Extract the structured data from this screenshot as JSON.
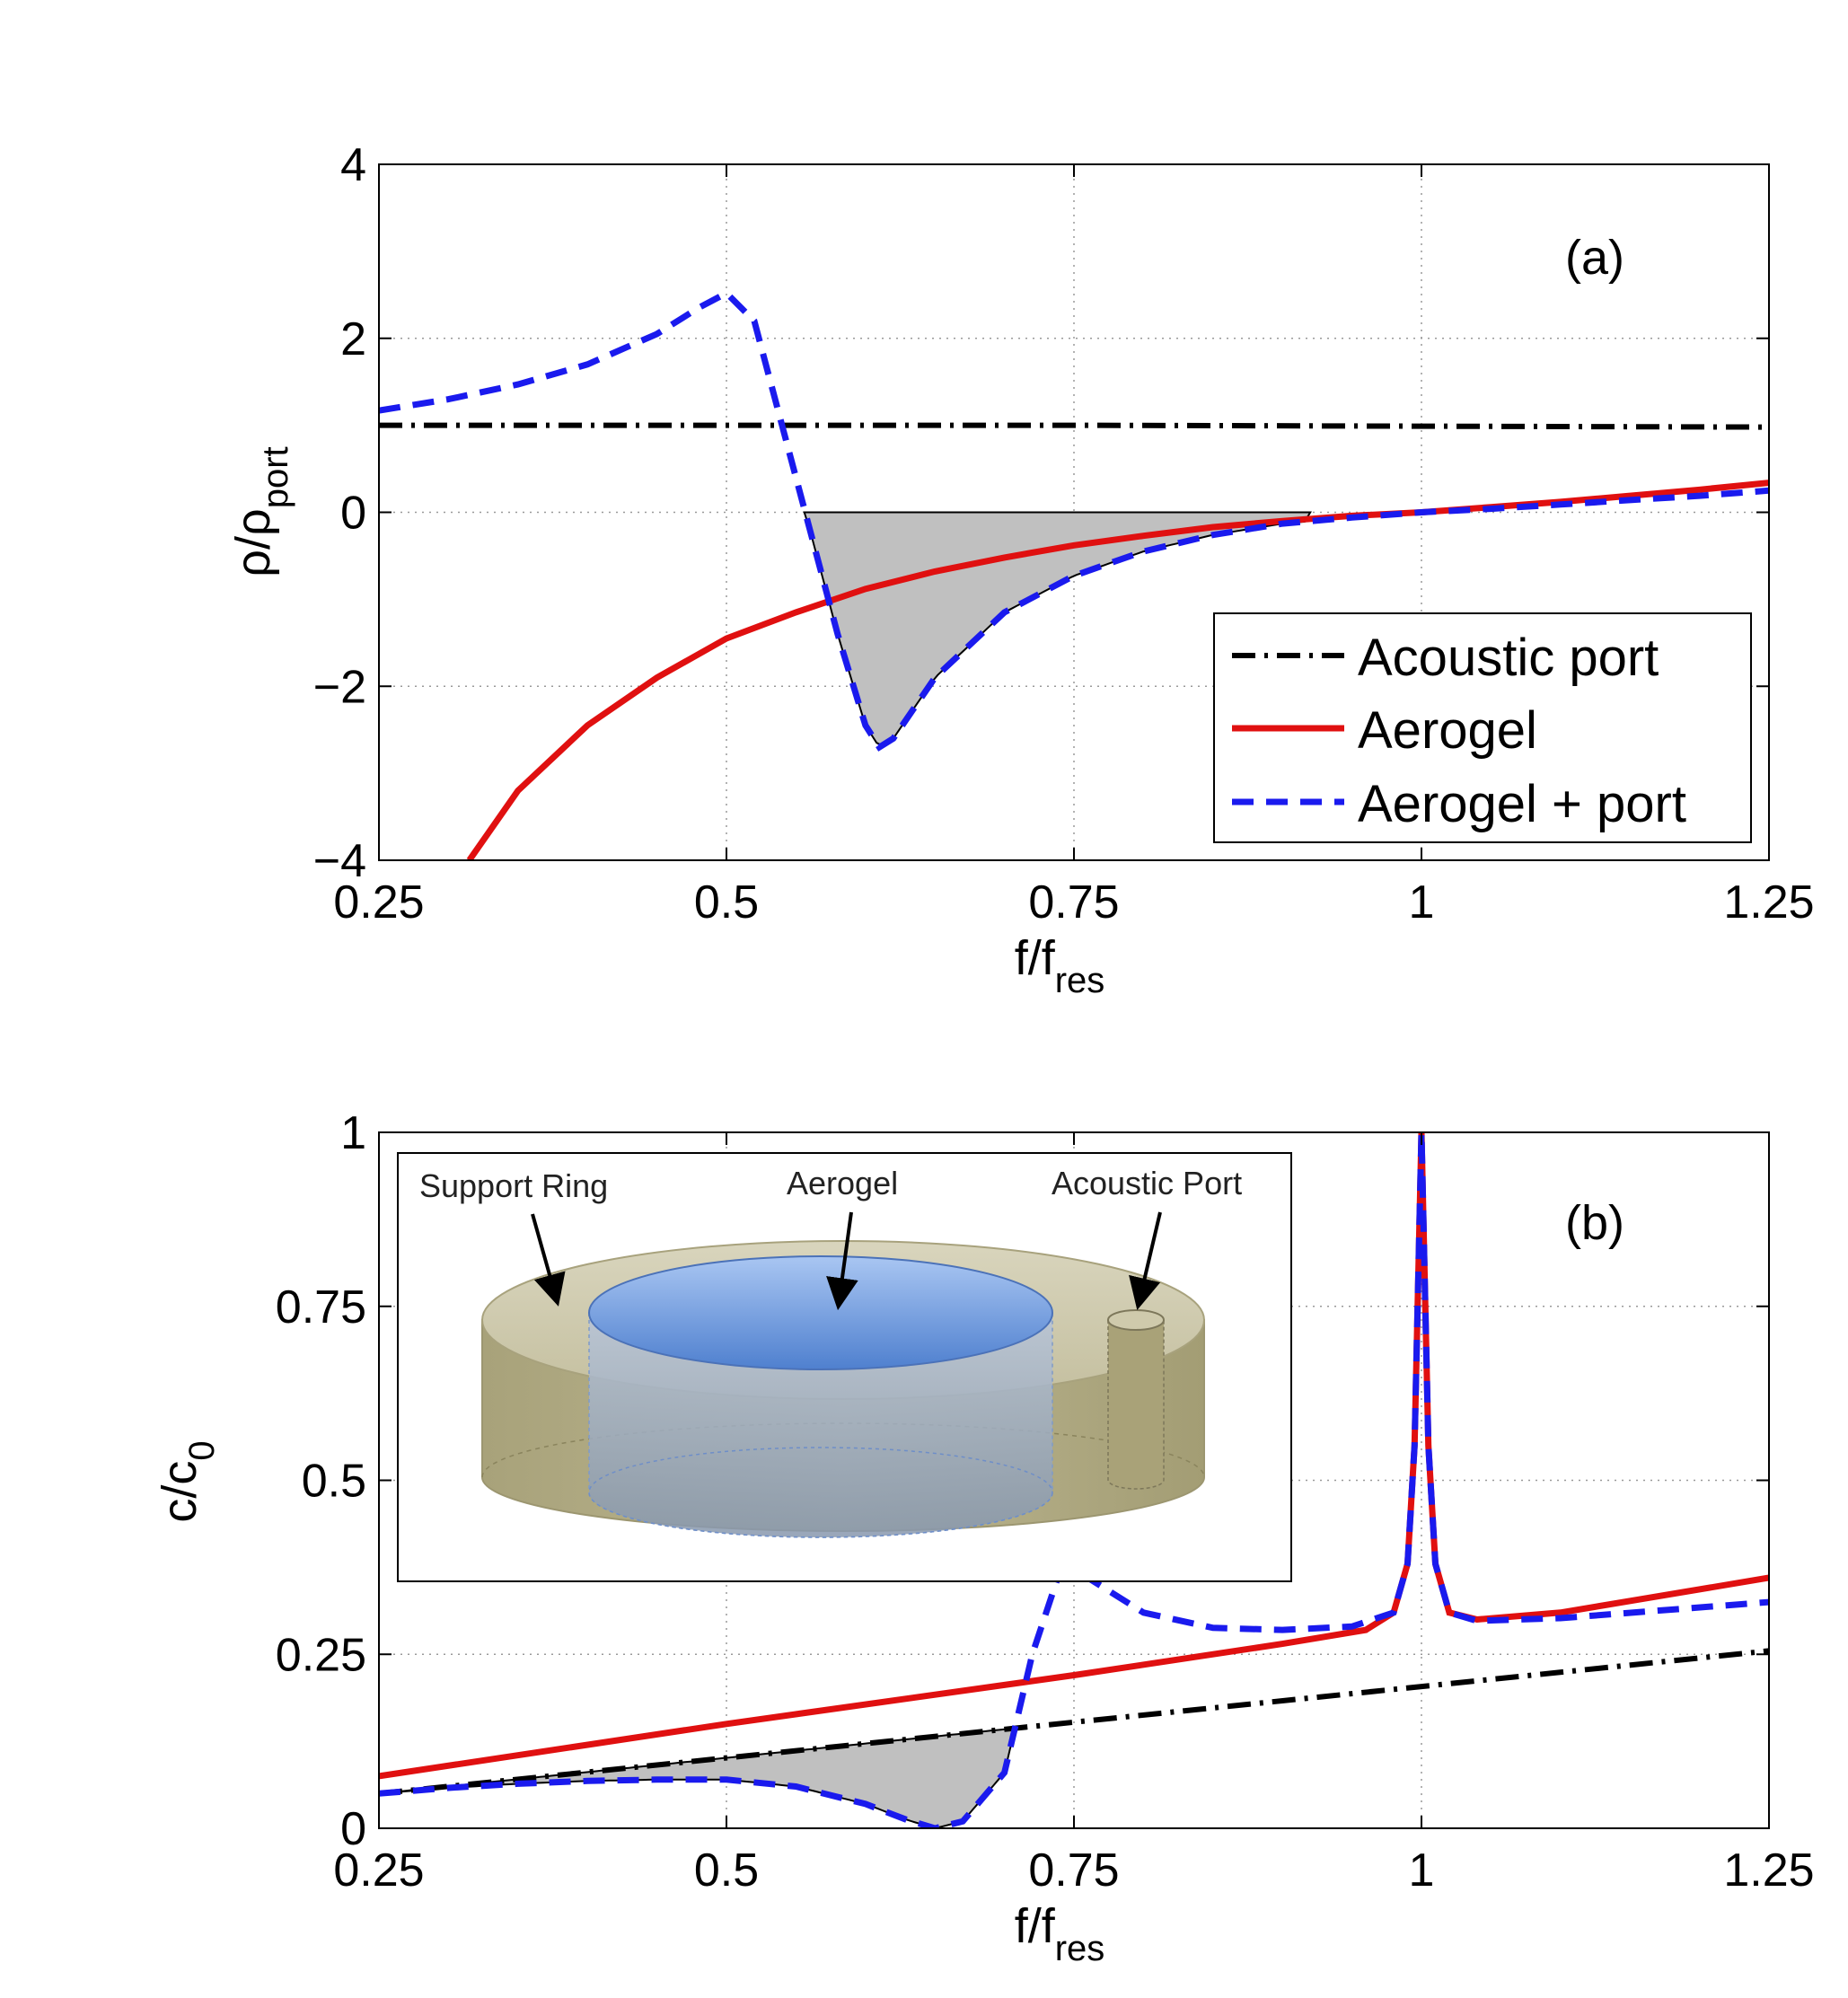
{
  "chart_data": [
    {
      "type": "line",
      "panel_label": "(a)",
      "xlabel": "f/f",
      "xlabel_sub": "res",
      "ylabel": "ρ/ρ",
      "ylabel_sub": "port",
      "xlim": [
        0.25,
        1.25
      ],
      "ylim": [
        -4,
        4
      ],
      "xticks": [
        0.25,
        0.5,
        0.75,
        1,
        1.25
      ],
      "xtick_labels": [
        "0.25",
        "0.5",
        "0.75",
        "1",
        "1.25"
      ],
      "yticks": [
        -4,
        -2,
        0,
        2,
        4
      ],
      "ytick_labels": [
        "−4",
        "−2",
        "0",
        "2",
        "4"
      ],
      "grid": true,
      "legend_position": "bottom-right",
      "shaded_region": "area between Aerogel + port curve and zero where negative (x ≈ 0.56 to 0.9)",
      "series": [
        {
          "name": "Acoustic port",
          "style": "dashdot",
          "color": "#000000",
          "x": [
            0.25,
            0.5,
            0.75,
            1.0,
            1.25
          ],
          "y": [
            1.0,
            1.0,
            1.0,
            0.99,
            0.98
          ]
        },
        {
          "name": "Aerogel",
          "style": "solid",
          "color": "#e01010",
          "x": [
            0.315,
            0.35,
            0.4,
            0.45,
            0.5,
            0.55,
            0.6,
            0.65,
            0.7,
            0.75,
            0.8,
            0.85,
            0.9,
            0.95,
            1.0,
            1.05,
            1.1,
            1.15,
            1.2,
            1.25
          ],
          "y": [
            -4.0,
            -3.2,
            -2.45,
            -1.9,
            -1.45,
            -1.15,
            -0.88,
            -0.68,
            -0.52,
            -0.38,
            -0.27,
            -0.17,
            -0.1,
            -0.04,
            0.0,
            0.06,
            0.12,
            0.19,
            0.26,
            0.34
          ]
        },
        {
          "name": "Aerogel + port",
          "style": "dashed",
          "color": "#1a1aee",
          "x": [
            0.25,
            0.3,
            0.35,
            0.4,
            0.45,
            0.48,
            0.5,
            0.52,
            0.54,
            0.56,
            0.58,
            0.6,
            0.61,
            0.62,
            0.65,
            0.7,
            0.75,
            0.8,
            0.85,
            0.9,
            0.95,
            1.0,
            1.05,
            1.1,
            1.15,
            1.2,
            1.25
          ],
          "y": [
            1.17,
            1.3,
            1.47,
            1.7,
            2.05,
            2.35,
            2.52,
            2.2,
            1.0,
            -0.2,
            -1.4,
            -2.45,
            -2.7,
            -2.6,
            -1.9,
            -1.15,
            -0.73,
            -0.45,
            -0.26,
            -0.13,
            -0.06,
            0.0,
            0.04,
            0.09,
            0.14,
            0.19,
            0.25
          ]
        }
      ]
    },
    {
      "type": "line",
      "panel_label": "(b)",
      "xlabel": "f/f",
      "xlabel_sub": "res",
      "ylabel": "c/c",
      "ylabel_sub": "0",
      "xlim": [
        0.25,
        1.25
      ],
      "ylim": [
        0,
        1
      ],
      "xticks": [
        0.25,
        0.5,
        0.75,
        1,
        1.25
      ],
      "xtick_labels": [
        "0.25",
        "0.5",
        "0.75",
        "1",
        "1.25"
      ],
      "yticks": [
        0,
        0.25,
        0.5,
        0.75,
        1
      ],
      "ytick_labels": [
        "0",
        "0.25",
        "0.5",
        "0.75",
        "1"
      ],
      "grid": true,
      "shaded_region": "area between Acoustic port and Aerogel + port curves where the latter is lower (x ≈ 0.25 to 0.71)",
      "series": [
        {
          "name": "Acoustic port",
          "style": "dashdot",
          "color": "#000000",
          "x": [
            0.25,
            1.25
          ],
          "y": [
            0.05,
            0.255
          ]
        },
        {
          "name": "Aerogel",
          "style": "solid",
          "color": "#e01010",
          "x": [
            0.25,
            0.5,
            0.75,
            0.9,
            0.96,
            0.98,
            0.99,
            0.995,
            1.0,
            1.005,
            1.01,
            1.02,
            1.04,
            1.1,
            1.25
          ],
          "y": [
            0.075,
            0.15,
            0.22,
            0.265,
            0.285,
            0.31,
            0.38,
            0.55,
            1.0,
            0.55,
            0.38,
            0.31,
            0.3,
            0.31,
            0.36
          ]
        },
        {
          "name": "Aerogel + port",
          "style": "dashed",
          "color": "#1a1aee",
          "x": [
            0.25,
            0.3,
            0.35,
            0.4,
            0.45,
            0.5,
            0.55,
            0.6,
            0.63,
            0.65,
            0.67,
            0.7,
            0.72,
            0.74,
            0.76,
            0.8,
            0.85,
            0.9,
            0.95,
            0.98,
            0.99,
            0.995,
            1.0,
            1.005,
            1.01,
            1.02,
            1.04,
            1.1,
            1.25
          ],
          "y": [
            0.05,
            0.058,
            0.064,
            0.068,
            0.07,
            0.07,
            0.06,
            0.035,
            0.012,
            0.0,
            0.01,
            0.08,
            0.25,
            0.37,
            0.36,
            0.31,
            0.288,
            0.285,
            0.29,
            0.31,
            0.38,
            0.55,
            1.0,
            0.55,
            0.38,
            0.31,
            0.298,
            0.302,
            0.325
          ]
        }
      ]
    }
  ],
  "legend": {
    "entries": [
      "Acoustic port",
      "Aerogel",
      "Aerogel + port"
    ]
  },
  "inset": {
    "labels": {
      "support_ring": "Support Ring",
      "aerogel": "Aerogel",
      "acoustic_port": "Acoustic Port"
    }
  },
  "colors": {
    "port": "#000000",
    "aerogel": "#e01010",
    "combo": "#1a1aee",
    "shade": "#c0c0c0"
  }
}
